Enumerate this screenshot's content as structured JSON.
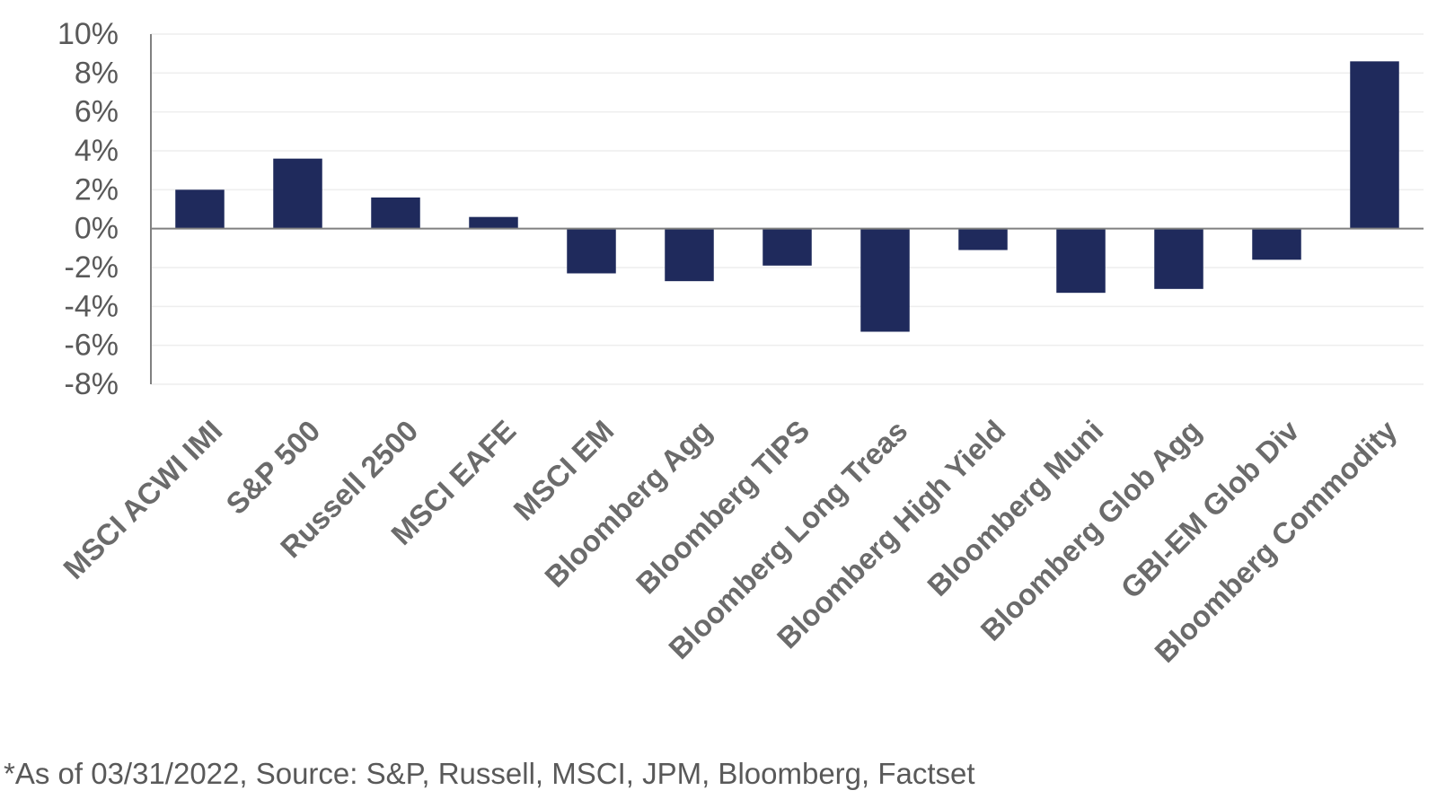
{
  "chart_data": {
    "type": "bar",
    "categories": [
      "MSCI ACWI IMI",
      "S&P 500",
      "Russell 2500",
      "MSCI EAFE",
      "MSCI EM",
      "Bloomberg Agg",
      "Bloomberg TIPS",
      "Bloomberg Long Treas",
      "Bloomberg High Yield",
      "Bloomberg Muni",
      "Bloomberg Glob Agg",
      "GBI-EM Glob Div",
      "Bloomberg Commodity"
    ],
    "values": [
      2.0,
      3.6,
      1.6,
      0.6,
      -2.3,
      -2.7,
      -1.9,
      -5.3,
      -1.1,
      -3.3,
      -3.1,
      -1.6,
      8.6
    ],
    "ylim": [
      -8,
      10
    ],
    "yticks": [
      "10%",
      "8%",
      "6%",
      "4%",
      "2%",
      "0%",
      "-2%",
      "-4%",
      "-6%",
      "-8%"
    ],
    "title": "",
    "xlabel": "",
    "ylabel": "",
    "grid": true,
    "bar_color": "#1f2a5c",
    "gridline_color": "#eeeeee",
    "axis_color": "#808080",
    "label_color": "#595959"
  },
  "footnote": "*As of 03/31/2022, Source: S&P, Russell, MSCI, JPM, Bloomberg, Factset"
}
